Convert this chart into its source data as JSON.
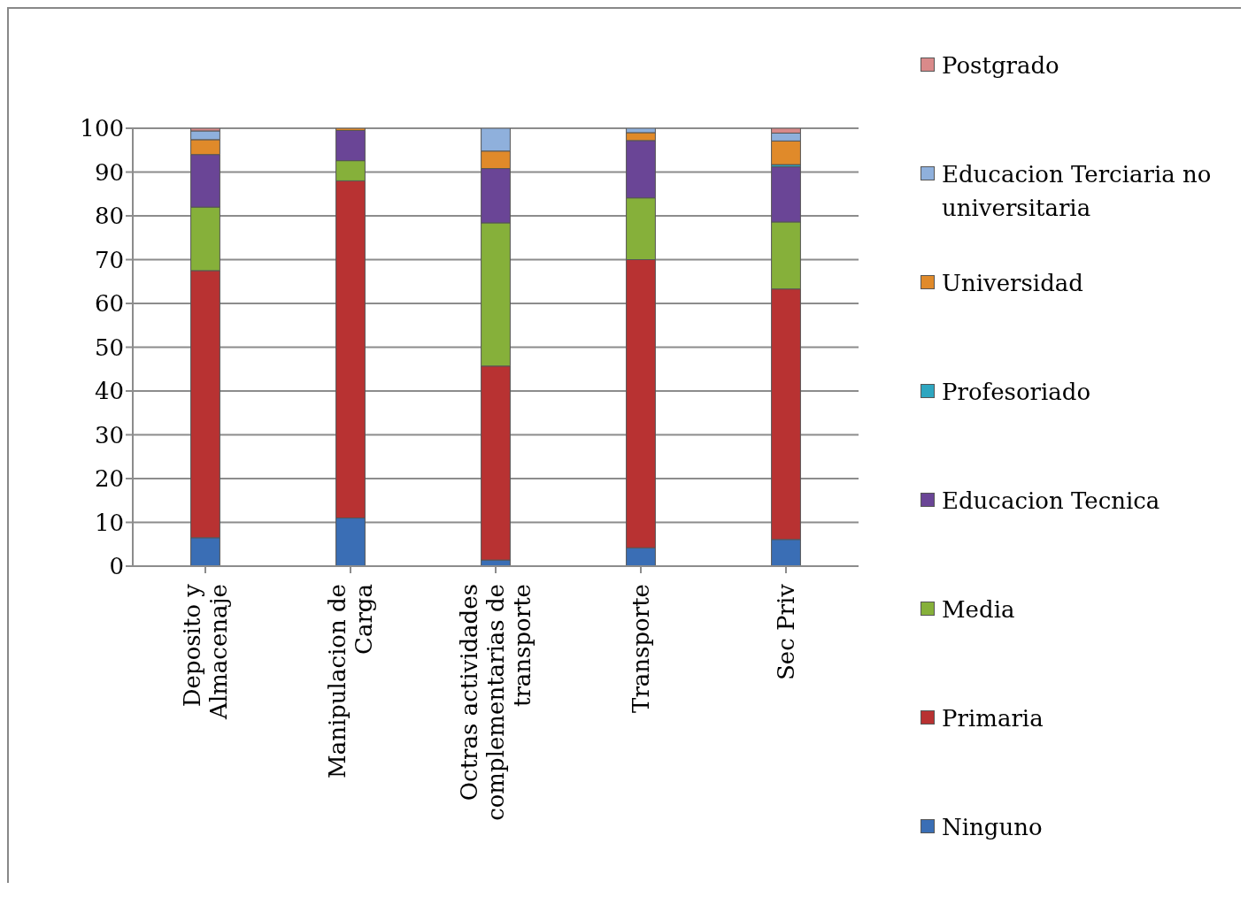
{
  "chart_data": {
    "type": "bar",
    "stacked": true,
    "categories": [
      "Deposito y Almacenaje",
      "Manipulacion de Carga",
      "Octras actividades complementarias de transporte",
      "Transporte",
      "Sec Priv"
    ],
    "series": [
      {
        "name": "Ninguno",
        "color": "#3a6eb5",
        "values": [
          6.5,
          11,
          1.4,
          4.2,
          6.1
        ]
      },
      {
        "name": "Primaria",
        "color": "#b83232",
        "values": [
          61,
          77,
          44.3,
          65.8,
          57.2
        ]
      },
      {
        "name": "Media",
        "color": "#86b03a",
        "values": [
          14.5,
          4.6,
          32.7,
          14.1,
          15.3
        ]
      },
      {
        "name": "Educacion Tecnica",
        "color": "#6a4596",
        "values": [
          12,
          6.9,
          12.4,
          13.1,
          12.6
        ]
      },
      {
        "name": "Profesoriado",
        "color": "#2ea6c0",
        "values": [
          0,
          0,
          0,
          0,
          0.5
        ]
      },
      {
        "name": "Universidad",
        "color": "#e08a2a",
        "values": [
          3.4,
          0.5,
          4,
          1.8,
          5.4
        ]
      },
      {
        "name": "Educacion Terciaria no universitaria",
        "color": "#8fb0dc",
        "values": [
          2,
          0,
          5.2,
          1,
          1.8
        ]
      },
      {
        "name": "Postgrado",
        "color": "#d98a8a",
        "values": [
          0.6,
          0,
          0,
          0,
          1.1
        ]
      }
    ],
    "ylim": [
      0,
      100
    ],
    "yticks": [
      0,
      10,
      20,
      30,
      40,
      50,
      60,
      70,
      80,
      90,
      100
    ],
    "grid": "y",
    "legend": "right"
  }
}
